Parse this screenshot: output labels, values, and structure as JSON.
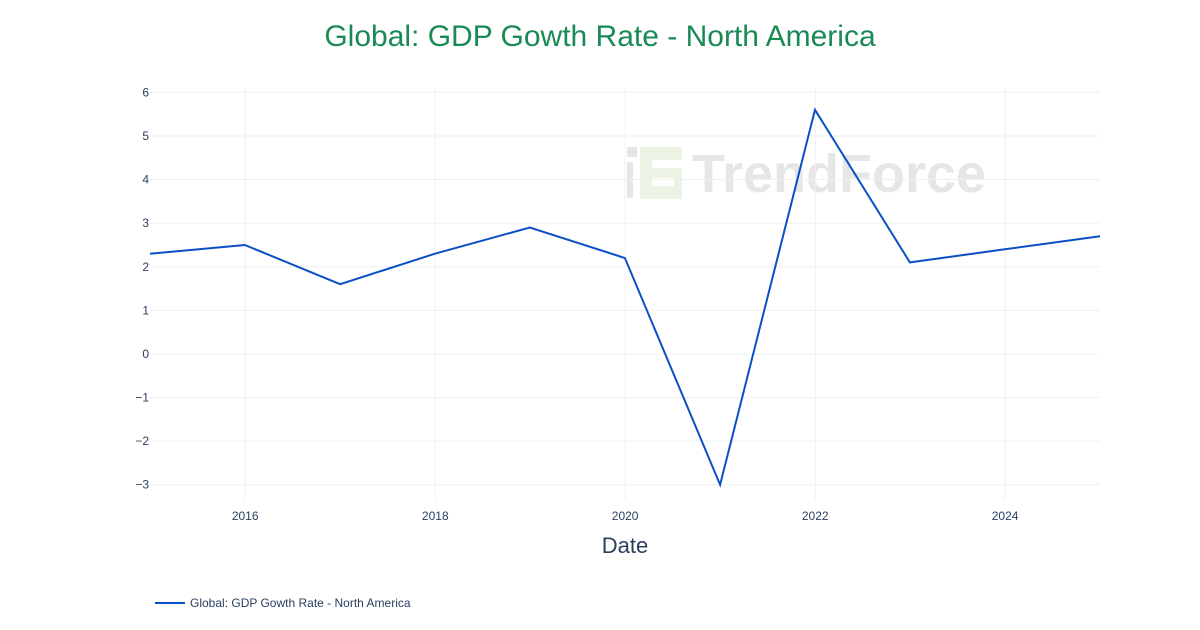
{
  "chart_data": {
    "type": "line",
    "title": "Global: GDP Gowth Rate - North America",
    "xlabel": "Date",
    "ylabel": "",
    "x": [
      "2014-12-31",
      "2015-12-31",
      "2016-12-31",
      "2017-12-31",
      "2018-12-31",
      "2019-12-31",
      "2020-12-31",
      "2021-12-31",
      "2022-12-31",
      "2023-12-31",
      "2024-12-31"
    ],
    "series": [
      {
        "name": "Global: GDP Gowth Rate - North America",
        "values": [
          2.3,
          2.5,
          1.6,
          2.3,
          2.9,
          2.2,
          -3.0,
          5.6,
          2.1,
          2.4,
          2.7
        ],
        "color": "#0b4fc7"
      }
    ],
    "ylim": [
      -3.35,
      6.1
    ],
    "xlim": [
      "2014-12-31",
      "2024-12-31"
    ],
    "y_ticks": [
      "6",
      "5",
      "4",
      "3",
      "2",
      "1",
      "0",
      "−1",
      "−2",
      "−3"
    ],
    "x_ticks": [
      "2016",
      "2018",
      "2020",
      "2022",
      "2024"
    ],
    "grid": true,
    "legend_position": "bottom-left",
    "watermark": "TrendForce",
    "title_color": "#1a8a55"
  }
}
